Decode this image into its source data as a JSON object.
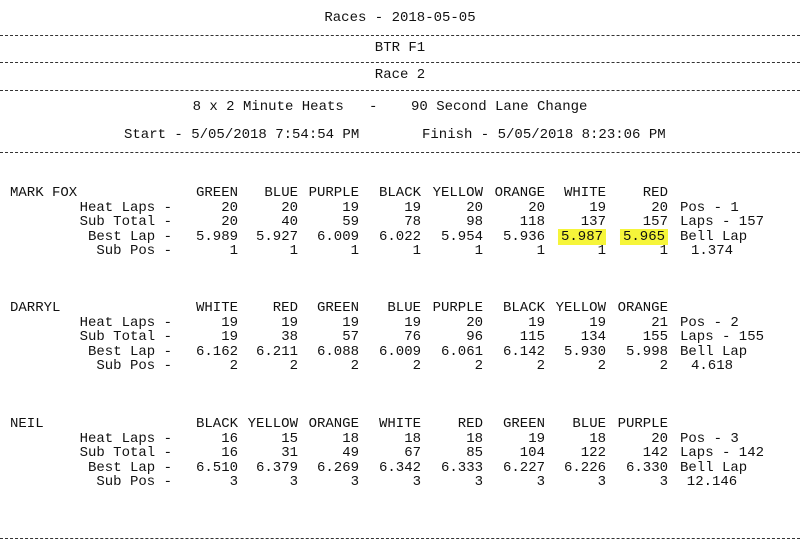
{
  "header": {
    "title": "Races - 2018-05-05",
    "club": "BTR F1",
    "race": "Race 2",
    "format": "8 x 2 Minute Heats   -    90 Second Lane Change",
    "start": "Start - 5/05/2018 7:54:54 PM",
    "finish": "Finish - 5/05/2018 8:23:06 PM"
  },
  "row_labels": [
    "Heat Laps -",
    "Sub Total -",
    "Best Lap -",
    "Sub Pos -"
  ],
  "drivers": [
    {
      "name": "MARK FOX",
      "lanes": [
        "GREEN",
        "BLUE",
        "PURPLE",
        "BLACK",
        "YELLOW",
        "ORANGE",
        "WHITE",
        "RED"
      ],
      "rows": [
        [
          "20",
          "20",
          "19",
          "19",
          "20",
          "20",
          "19",
          "20"
        ],
        [
          "20",
          "40",
          "59",
          "78",
          "98",
          "118",
          "137",
          "157"
        ],
        [
          "5.989",
          "5.927",
          "6.009",
          "6.022",
          "5.954",
          "5.936",
          "5.987",
          "5.965"
        ],
        [
          "1",
          "1",
          "1",
          "1",
          "1",
          "1",
          "1",
          "1"
        ]
      ],
      "summary": [
        "Pos - 1",
        "Laps - 157",
        "Bell Lap",
        "1.374"
      ]
    },
    {
      "name": "DARRYL",
      "lanes": [
        "WHITE",
        "RED",
        "GREEN",
        "BLUE",
        "PURPLE",
        "BLACK",
        "YELLOW",
        "ORANGE"
      ],
      "rows": [
        [
          "19",
          "19",
          "19",
          "19",
          "20",
          "19",
          "19",
          "21"
        ],
        [
          "19",
          "38",
          "57",
          "76",
          "96",
          "115",
          "134",
          "155"
        ],
        [
          "6.162",
          "6.211",
          "6.088",
          "6.009",
          "6.061",
          "6.142",
          "5.930",
          "5.998"
        ],
        [
          "2",
          "2",
          "2",
          "2",
          "2",
          "2",
          "2",
          "2"
        ]
      ],
      "summary": [
        "Pos - 2",
        "Laps - 155",
        "Bell Lap",
        "4.618"
      ]
    },
    {
      "name": "NEIL",
      "lanes": [
        "BLACK",
        "YELLOW",
        "ORANGE",
        "WHITE",
        "RED",
        "GREEN",
        "BLUE",
        "PURPLE"
      ],
      "rows": [
        [
          "16",
          "15",
          "18",
          "18",
          "18",
          "19",
          "18",
          "20"
        ],
        [
          "16",
          "31",
          "49",
          "67",
          "85",
          "104",
          "122",
          "142"
        ],
        [
          "6.510",
          "6.379",
          "6.269",
          "6.342",
          "6.333",
          "6.227",
          "6.226",
          "6.330"
        ],
        [
          "3",
          "3",
          "3",
          "3",
          "3",
          "3",
          "3",
          "3"
        ]
      ],
      "summary": [
        "Pos - 3",
        "Laps - 142",
        "Bell Lap",
        "12.146"
      ]
    }
  ]
}
